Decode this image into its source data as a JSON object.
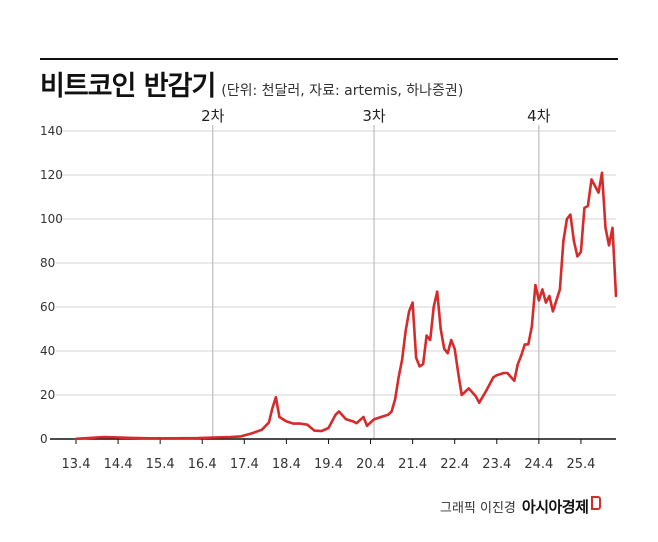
{
  "header": {
    "title": "비트코인 반감기",
    "subtitle": "(단위: 천달러, 자료: artemis, 하나증권)"
  },
  "credit": {
    "label": "그래픽 이진경",
    "brand": "아시아경제",
    "brand_mark_icon": "red-bracket-logo-icon"
  },
  "colors": {
    "line": "#d62b2b",
    "grid": "#d4d4d4",
    "halving_line": "#bdbdbd",
    "axis": "#111111"
  },
  "chart_data": {
    "type": "line",
    "title": "비트코인 반감기",
    "xlabel": "",
    "ylabel": "",
    "xlim": [
      "2013-04",
      "2026-02"
    ],
    "ylim": [
      0,
      140
    ],
    "yticks": [
      0,
      20,
      40,
      60,
      80,
      100,
      120,
      140
    ],
    "xtick_labels": [
      "13.4",
      "14.4",
      "15.4",
      "16.4",
      "17.4",
      "18.4",
      "19.4",
      "20.4",
      "21.4",
      "22.4",
      "23.4",
      "24.4",
      "25.4"
    ],
    "xtick_dates": [
      "2013-04",
      "2014-04",
      "2015-04",
      "2016-04",
      "2017-04",
      "2018-04",
      "2019-04",
      "2020-04",
      "2021-04",
      "2022-04",
      "2023-04",
      "2024-04",
      "2025-04"
    ],
    "grid": true,
    "halvings": [
      {
        "label": "2차",
        "date": "2016-07"
      },
      {
        "label": "3차",
        "date": "2020-05"
      },
      {
        "label": "4차",
        "date": "2024-04"
      }
    ],
    "series": [
      {
        "x": [
          "2013-04",
          "2013-12",
          "2014-06",
          "2015-01",
          "2015-08",
          "2016-03",
          "2016-07",
          "2016-12",
          "2017-03",
          "2017-06",
          "2017-09",
          "2017-11",
          "2017-12",
          "2018-01",
          "2018-02",
          "2018-04",
          "2018-06",
          "2018-08",
          "2018-10",
          "2018-12",
          "2019-02",
          "2019-04",
          "2019-06",
          "2019-07",
          "2019-09",
          "2019-11",
          "2019-12",
          "2020-02",
          "2020-03",
          "2020-05",
          "2020-07",
          "2020-09",
          "2020-10",
          "2020-11",
          "2020-12",
          "2021-01",
          "2021-02",
          "2021-03",
          "2021-04",
          "2021-05",
          "2021-06",
          "2021-07",
          "2021-08",
          "2021-09",
          "2021-10",
          "2021-11",
          "2021-12",
          "2022-01",
          "2022-02",
          "2022-03",
          "2022-04",
          "2022-05",
          "2022-06",
          "2022-08",
          "2022-10",
          "2022-11",
          "2023-01",
          "2023-03",
          "2023-04",
          "2023-06",
          "2023-07",
          "2023-09",
          "2023-10",
          "2023-11",
          "2023-12",
          "2024-01",
          "2024-02",
          "2024-03",
          "2024-04",
          "2024-05",
          "2024-06",
          "2024-07",
          "2024-08",
          "2024-09",
          "2024-10",
          "2024-11",
          "2024-12",
          "2025-01",
          "2025-02",
          "2025-03",
          "2025-04",
          "2025-05",
          "2025-06",
          "2025-07",
          "2025-08",
          "2025-09",
          "2025-10",
          "2025-11",
          "2025-12",
          "2026-01",
          "2026-02"
        ],
        "values": [
          0.1,
          0.9,
          0.6,
          0.3,
          0.3,
          0.4,
          0.7,
          0.9,
          1.2,
          2.5,
          4.2,
          7.5,
          14.0,
          19.0,
          10.0,
          8.0,
          7.0,
          7.0,
          6.5,
          3.8,
          3.6,
          5.0,
          11.0,
          12.5,
          9.0,
          8.0,
          7.2,
          10.0,
          6.0,
          9.0,
          10.0,
          11.0,
          12.5,
          18.0,
          28.0,
          36.0,
          49.0,
          58.0,
          62.0,
          37.0,
          33.0,
          34.0,
          47.0,
          45.0,
          60.0,
          67.0,
          50.0,
          41.0,
          39.0,
          45.0,
          41.0,
          30.0,
          20.0,
          23.0,
          19.5,
          16.5,
          22.0,
          28.0,
          29.0,
          30.0,
          30.0,
          26.5,
          34.0,
          38.0,
          43.0,
          43.0,
          51.0,
          70.0,
          63.0,
          68.0,
          62.0,
          65.0,
          58.0,
          63.0,
          68.0,
          90.0,
          100.0,
          102.0,
          90.0,
          83.0,
          85.0,
          105.0,
          106.0,
          118.0,
          115.0,
          112.0,
          121.0,
          96.0,
          88.0,
          96.0,
          65.0
        ]
      }
    ]
  }
}
